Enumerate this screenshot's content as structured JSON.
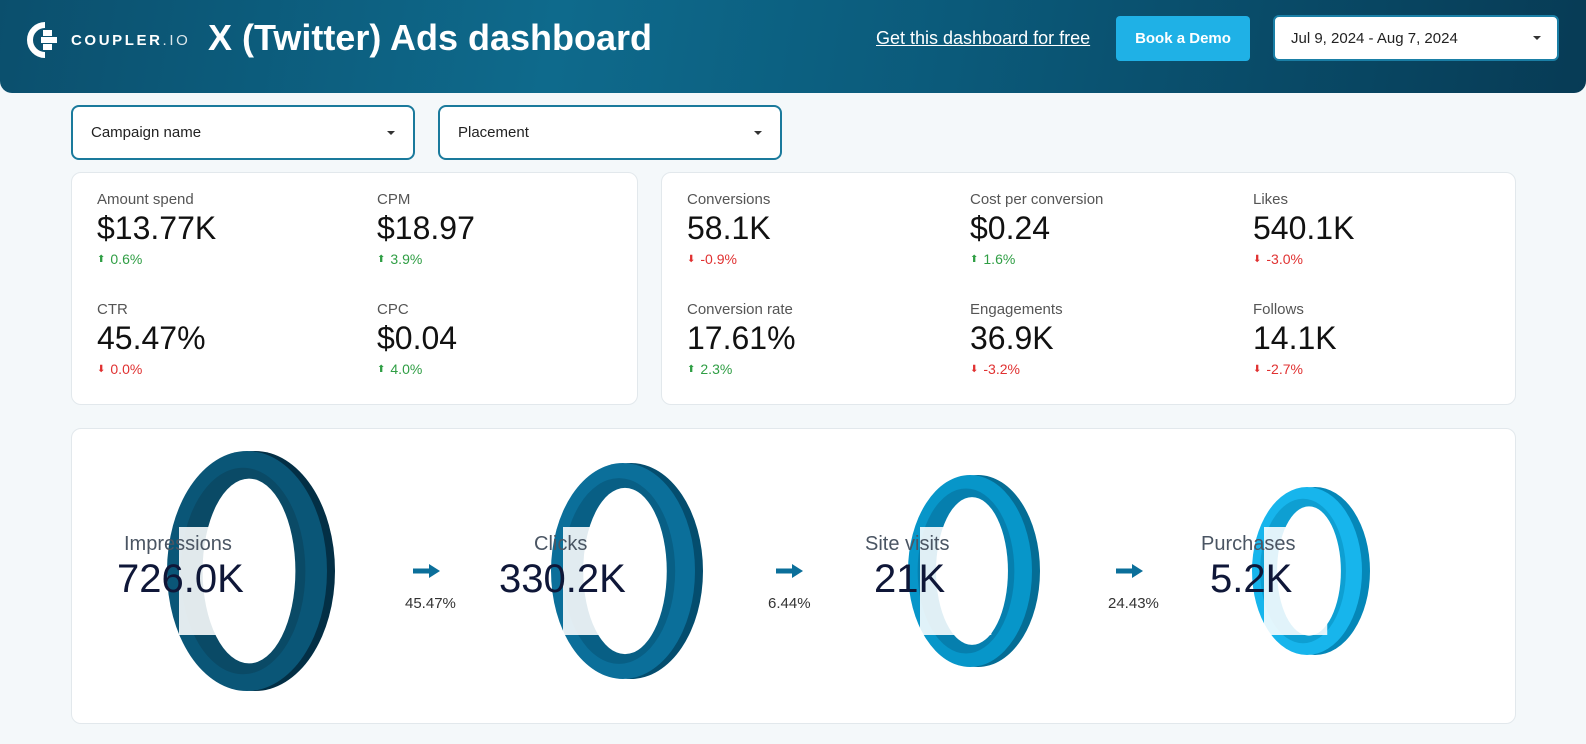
{
  "header": {
    "logo_text": "COUPLER",
    "logo_suffix": ".IO",
    "title": "X (Twitter) Ads dashboard",
    "free_link": "Get this dashboard for free",
    "demo_button": "Book a Demo",
    "date_range": "Jul 9, 2024 - Aug 7, 2024"
  },
  "filters": {
    "campaign": "Campaign name",
    "placement": "Placement"
  },
  "kpis_left": [
    {
      "label": "Amount spend",
      "value": "$13.77K",
      "delta": "0.6%",
      "trend": "up"
    },
    {
      "label": "CPM",
      "value": "$18.97",
      "delta": "3.9%",
      "trend": "up"
    },
    {
      "label": "CTR",
      "value": "45.47%",
      "delta": "0.0%",
      "trend": "down"
    },
    {
      "label": "CPC",
      "value": "$0.04",
      "delta": "4.0%",
      "trend": "up"
    }
  ],
  "kpis_right": [
    {
      "label": "Conversions",
      "value": "58.1K",
      "delta": "-0.9%",
      "trend": "down"
    },
    {
      "label": "Cost per conversion",
      "value": "$0.24",
      "delta": "1.6%",
      "trend": "up"
    },
    {
      "label": "Likes",
      "value": "540.1K",
      "delta": "-3.0%",
      "trend": "down"
    },
    {
      "label": "Conversion rate",
      "value": "17.61%",
      "delta": "2.3%",
      "trend": "up"
    },
    {
      "label": "Engagements",
      "value": "36.9K",
      "delta": "-3.2%",
      "trend": "down"
    },
    {
      "label": "Follows",
      "value": "14.1K",
      "delta": "-2.7%",
      "trend": "down"
    }
  ],
  "funnel": {
    "stages": [
      {
        "label": "Impressions",
        "value": "726.0K"
      },
      {
        "label": "Clicks",
        "value": "330.2K"
      },
      {
        "label": "Site visits",
        "value": "21K"
      },
      {
        "label": "Purchases",
        "value": "5.2K"
      }
    ],
    "conversion_rates": [
      "45.47%",
      "6.44%",
      "24.43%"
    ]
  },
  "colors": {
    "up": "#2f9e44",
    "down": "#e03131",
    "accent": "#1fb1e6",
    "funnel_outer": [
      "#0a5677",
      "#0b6f9a",
      "#0796c9",
      "#17b5ec"
    ],
    "funnel_front": [
      "#0a4a66",
      "#085f85",
      "#067fae",
      "#0e9fd2"
    ],
    "funnel_back": [
      "#032f45",
      "#044d6e",
      "#056d95",
      "#0587b8"
    ]
  }
}
